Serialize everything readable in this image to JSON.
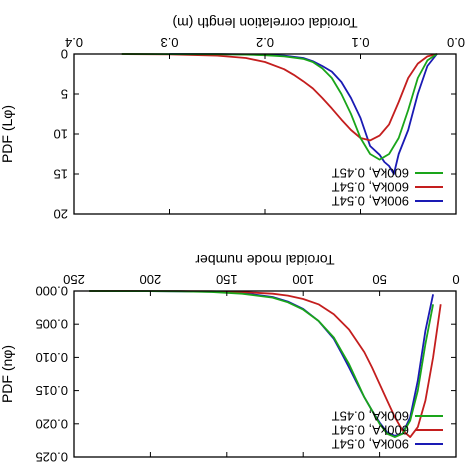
{
  "figure": {
    "orientation": "rotated-180"
  },
  "chart_data": [
    {
      "type": "line",
      "panel": "top",
      "xlabel": "Toroidal correlation length (m)",
      "ylabel": "PDF (Lφ)",
      "xlim": [
        0,
        0.4
      ],
      "ylim": [
        0,
        20
      ],
      "xticks": [
        "0.0",
        "0.1",
        "0.2",
        "0.3",
        "0.4"
      ],
      "yticks": [
        "0",
        "5",
        "10",
        "15",
        "20"
      ],
      "legend_position": "lower-right",
      "series": [
        {
          "name": "600kA, 0.45T",
          "color": "#1aa51a",
          "x": [
            0.02,
            0.03,
            0.04,
            0.05,
            0.06,
            0.07,
            0.08,
            0.09,
            0.1,
            0.11,
            0.12,
            0.13,
            0.14,
            0.15,
            0.16,
            0.18,
            0.2,
            0.22,
            0.25,
            0.3,
            0.35
          ],
          "y": [
            0.0,
            0.8,
            3.0,
            7.0,
            10.5,
            12.5,
            13.2,
            12.5,
            10.5,
            7.5,
            5.0,
            3.0,
            1.8,
            1.0,
            0.6,
            0.3,
            0.15,
            0.08,
            0.03,
            0.01,
            0.0
          ]
        },
        {
          "name": "600kA, 0.54T",
          "color": "#c41e1e",
          "x": [
            0.02,
            0.03,
            0.04,
            0.05,
            0.06,
            0.07,
            0.08,
            0.09,
            0.1,
            0.11,
            0.12,
            0.13,
            0.14,
            0.15,
            0.16,
            0.17,
            0.18,
            0.2,
            0.22,
            0.25,
            0.3,
            0.35
          ],
          "y": [
            0.0,
            0.3,
            1.2,
            3.0,
            6.0,
            8.8,
            10.2,
            10.8,
            10.5,
            9.5,
            8.2,
            6.8,
            5.5,
            4.3,
            3.4,
            2.6,
            1.9,
            1.0,
            0.5,
            0.2,
            0.05,
            0.0
          ]
        },
        {
          "name": "900kA, 0.54T",
          "color": "#1a1ab4",
          "x": [
            0.02,
            0.03,
            0.04,
            0.05,
            0.06,
            0.065,
            0.07,
            0.075,
            0.08,
            0.09,
            0.1,
            0.11,
            0.12,
            0.13,
            0.14,
            0.15,
            0.16,
            0.18,
            0.2,
            0.22,
            0.25,
            0.3
          ],
          "y": [
            0.0,
            1.5,
            5.0,
            9.5,
            12.5,
            15.0,
            14.0,
            13.5,
            12.6,
            11.5,
            8.0,
            5.5,
            3.5,
            2.2,
            1.5,
            0.9,
            0.5,
            0.2,
            0.1,
            0.05,
            0.02,
            0.0
          ]
        }
      ]
    },
    {
      "type": "line",
      "panel": "bottom",
      "xlabel": "Toroidal mode number",
      "ylabel": "PDF (nφ)",
      "xlim": [
        0,
        250
      ],
      "ylim": [
        0,
        0.025
      ],
      "xticks": [
        "0",
        "50",
        "100",
        "150",
        "200",
        "250"
      ],
      "yticks": [
        "0.000",
        "0.005",
        "0.010",
        "0.015",
        "0.020",
        "0.025"
      ],
      "legend_position": "lower-right",
      "series": [
        {
          "name": "600kA, 0.45T",
          "color": "#1aa51a",
          "x": [
            15,
            20,
            25,
            30,
            35,
            40,
            45,
            50,
            55,
            60,
            65,
            70,
            75,
            80,
            90,
            100,
            110,
            120,
            140,
            160,
            180,
            200,
            220,
            240
          ],
          "y": [
            0.002,
            0.008,
            0.015,
            0.0195,
            0.0215,
            0.022,
            0.0215,
            0.02,
            0.018,
            0.016,
            0.0135,
            0.011,
            0.009,
            0.007,
            0.0045,
            0.0028,
            0.0017,
            0.001,
            0.0004,
            0.00015,
            5e-05,
            2e-05,
            1e-05,
            0.0
          ]
        },
        {
          "name": "600kA, 0.54T",
          "color": "#c41e1e",
          "x": [
            10,
            15,
            20,
            25,
            30,
            35,
            40,
            45,
            50,
            55,
            60,
            70,
            80,
            90,
            100,
            110,
            120,
            140,
            160,
            180,
            200,
            220,
            240
          ],
          "y": [
            0.002,
            0.01,
            0.0165,
            0.0205,
            0.022,
            0.021,
            0.019,
            0.0165,
            0.014,
            0.0115,
            0.0092,
            0.0058,
            0.0035,
            0.002,
            0.0012,
            0.0007,
            0.0004,
            0.00015,
            5e-05,
            2e-05,
            1e-05,
            0.0,
            0.0
          ]
        },
        {
          "name": "900kA, 0.54T",
          "color": "#1a1ab4",
          "x": [
            15,
            20,
            25,
            30,
            35,
            40,
            45,
            50,
            55,
            60,
            65,
            70,
            75,
            80,
            90,
            100,
            110,
            120,
            140,
            160,
            180,
            200,
            220,
            240
          ],
          "y": [
            0.0005,
            0.006,
            0.0135,
            0.019,
            0.0215,
            0.0218,
            0.0213,
            0.0198,
            0.018,
            0.016,
            0.0138,
            0.0115,
            0.0093,
            0.0072,
            0.0045,
            0.0027,
            0.0016,
            0.0009,
            0.0003,
            0.0001,
            4e-05,
            1e-05,
            0.0,
            0.0
          ]
        }
      ]
    }
  ]
}
